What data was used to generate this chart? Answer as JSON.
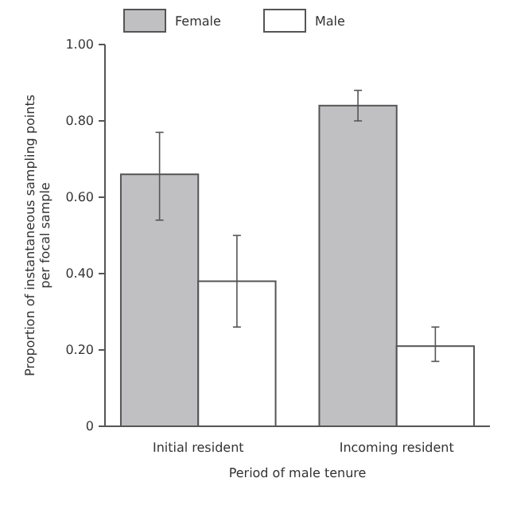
{
  "chart_data": {
    "type": "bar",
    "xlabel": "Period of male tenure",
    "ylabel": "Proportion of instantaneous sampling points per focal sample",
    "categories": [
      "Initial resident",
      "Incoming resident"
    ],
    "series": [
      {
        "name": "Female",
        "color": "#c0c0c2",
        "values": [
          0.66,
          0.84
        ],
        "errors": [
          [
            0.54,
            0.77
          ],
          [
            0.8,
            0.88
          ]
        ]
      },
      {
        "name": "Male",
        "color": "#ffffff",
        "values": [
          0.38,
          0.21
        ],
        "errors": [
          [
            0.26,
            0.5
          ],
          [
            0.17,
            0.26
          ]
        ]
      }
    ],
    "ylim": [
      0,
      1
    ],
    "yticks": [
      {
        "value": 0,
        "label": "0"
      },
      {
        "value": 0.2,
        "label": "0.20"
      },
      {
        "value": 0.4,
        "label": "0.40"
      },
      {
        "value": 0.6,
        "label": "0.60"
      },
      {
        "value": 0.8,
        "label": "0.80"
      },
      {
        "value": 1,
        "label": "1.00"
      }
    ],
    "grid": false,
    "legend": "top"
  }
}
